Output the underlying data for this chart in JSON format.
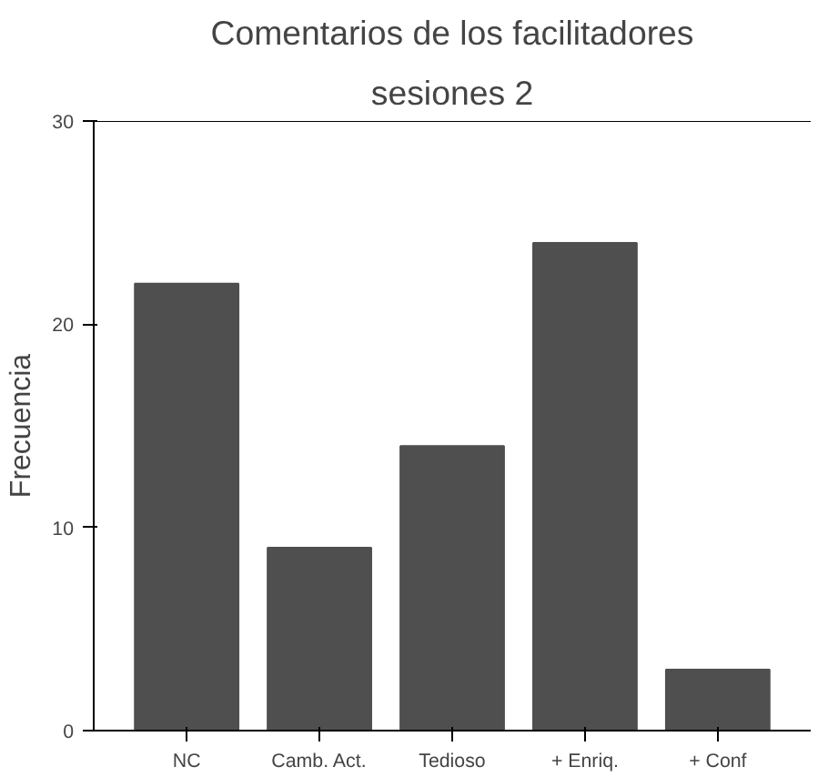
{
  "chart_data": {
    "type": "bar",
    "title": "Comentarios de los facilitadores",
    "subtitle": "sesiones 2",
    "ylabel": "Frecuencia",
    "categories": [
      "NC",
      "Camb. Act.",
      "Tedioso",
      "+ Enriq.",
      "+ Conf"
    ],
    "values": [
      22,
      9,
      14,
      24,
      3
    ],
    "color": "#4f4f4f",
    "ylim": [
      0,
      30
    ],
    "yticks": [
      0,
      10,
      20,
      30
    ],
    "grid": false
  }
}
